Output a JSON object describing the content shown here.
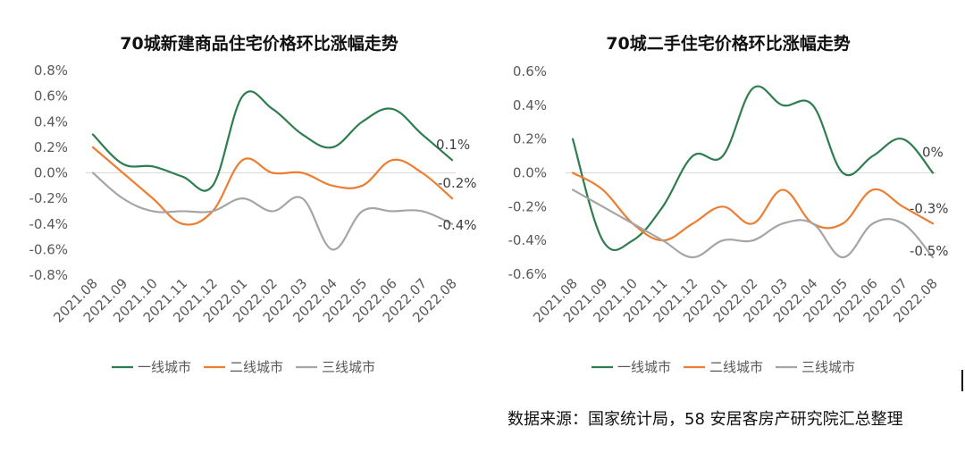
{
  "source": "数据来源：国家统计局，58 安居客房产研究院汇总整理",
  "colors": {
    "first": "#2e7d4f",
    "second": "#ed7d31",
    "third": "#a5a5a5"
  },
  "chart_data": [
    {
      "type": "line",
      "title": "70城新建商品住宅价格环比涨幅走势",
      "categories": [
        "2021.08",
        "2021.09",
        "2021.10",
        "2021.11",
        "2021.12",
        "2022.01",
        "2022.02",
        "2022.03",
        "2022.04",
        "2022.05",
        "2022.06",
        "2022.07",
        "2022.08"
      ],
      "ylim": [
        -0.8,
        0.8
      ],
      "yticks": [
        -0.8,
        -0.6,
        -0.4,
        -0.2,
        0.0,
        0.2,
        0.4,
        0.6,
        0.8
      ],
      "ytick_labels": [
        "-0.8%",
        "-0.6%",
        "-0.4%",
        "-0.2%",
        "0.0%",
        "0.2%",
        "0.4%",
        "0.6%",
        "0.8%"
      ],
      "grid": false,
      "legend": "bottom",
      "series": [
        {
          "name": "一线城市",
          "color": "#2e7d4f",
          "values": [
            0.3,
            0.07,
            0.05,
            -0.03,
            -0.1,
            0.6,
            0.5,
            0.3,
            0.2,
            0.4,
            0.5,
            0.3,
            0.1
          ],
          "end_label": "0.1%"
        },
        {
          "name": "二线城市",
          "color": "#ed7d31",
          "values": [
            0.2,
            0.0,
            -0.2,
            -0.4,
            -0.3,
            0.1,
            0.0,
            0.0,
            -0.1,
            -0.1,
            0.1,
            0.0,
            -0.2
          ],
          "end_label": "-0.2%"
        },
        {
          "name": "三线城市",
          "color": "#a5a5a5",
          "values": [
            0.0,
            -0.2,
            -0.3,
            -0.3,
            -0.3,
            -0.2,
            -0.3,
            -0.2,
            -0.6,
            -0.3,
            -0.3,
            -0.3,
            -0.4
          ],
          "end_label": "-0.4%"
        }
      ]
    },
    {
      "type": "line",
      "title": "70城二手住宅价格环比涨幅走势",
      "categories": [
        "2021.08",
        "2021.09",
        "2021.10",
        "2021.11",
        "2021.12",
        "2022.01",
        "2022.02",
        "2022.03",
        "2022.04",
        "2022.05",
        "2022.06",
        "2022.07",
        "2022.08"
      ],
      "ylim": [
        -0.6,
        0.6
      ],
      "yticks": [
        -0.6,
        -0.4,
        -0.2,
        0.0,
        0.2,
        0.4,
        0.6
      ],
      "ytick_labels": [
        "-0.6%",
        "-0.4%",
        "-0.2%",
        "0.0%",
        "0.2%",
        "0.4%",
        "0.6%"
      ],
      "grid": false,
      "legend": "bottom",
      "series": [
        {
          "name": "一线城市",
          "color": "#2e7d4f",
          "values": [
            0.2,
            -0.4,
            -0.4,
            -0.2,
            0.1,
            0.1,
            0.5,
            0.4,
            0.4,
            0.0,
            0.1,
            0.2,
            0.0
          ],
          "end_label": "0%"
        },
        {
          "name": "二线城市",
          "color": "#ed7d31",
          "values": [
            0.0,
            -0.1,
            -0.3,
            -0.4,
            -0.3,
            -0.2,
            -0.3,
            -0.1,
            -0.3,
            -0.3,
            -0.1,
            -0.2,
            -0.3
          ],
          "end_label": "-0.3%"
        },
        {
          "name": "三线城市",
          "color": "#a5a5a5",
          "values": [
            -0.1,
            -0.2,
            -0.3,
            -0.4,
            -0.5,
            -0.4,
            -0.4,
            -0.3,
            -0.3,
            -0.5,
            -0.3,
            -0.3,
            -0.5
          ],
          "end_label": "-0.5%"
        }
      ]
    }
  ]
}
